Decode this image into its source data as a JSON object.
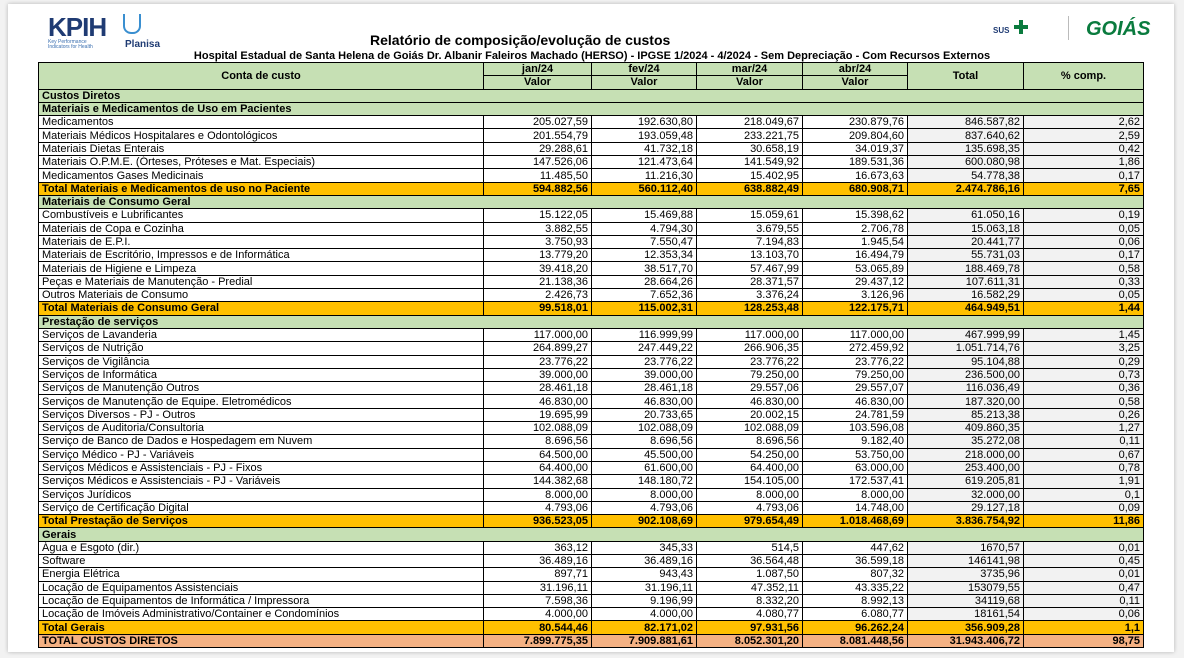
{
  "header": {
    "logo": "KPIH",
    "logo_tagline": "Key Performance Indicators for Health",
    "brand": "Planisa",
    "sus": "SUS",
    "state": "GOIÁS",
    "title": "Relatório de composição/evolução de custos",
    "subtitle": "Hospital Estadual de Santa Helena de Goiás Dr. Albanir Faleiros Machado (HERSO) - IPGSE 1/2024 - 4/2024 - Sem Depreciação - Com Recursos Externos"
  },
  "table": {
    "columns": [
      "Conta de custo",
      "jan/24",
      "fev/24",
      "mar/24",
      "abr/24",
      "Total",
      "% comp."
    ],
    "subheader": [
      "Valor",
      "Valor",
      "Valor",
      "Valor"
    ],
    "rows": [
      {
        "style": "group",
        "cells": [
          "Custos Diretos"
        ]
      },
      {
        "style": "group",
        "cells": [
          "Materiais e Medicamentos de Uso em Pacientes"
        ]
      },
      {
        "style": "item",
        "cells": [
          "Medicamentos",
          "205.027,59",
          "192.630,80",
          "218.049,67",
          "230.879,76",
          "846.587,82",
          "2,62"
        ]
      },
      {
        "style": "item",
        "cells": [
          "Materiais Médicos Hospitalares e Odontológicos",
          "201.554,79",
          "193.059,48",
          "233.221,75",
          "209.804,60",
          "837.640,62",
          "2,59"
        ]
      },
      {
        "style": "item",
        "cells": [
          "Materiais Dietas Enterais",
          "29.288,61",
          "41.732,18",
          "30.658,19",
          "34.019,37",
          "135.698,35",
          "0,42"
        ]
      },
      {
        "style": "item",
        "cells": [
          "Materiais O.P.M.E. (Órteses, Próteses e Mat. Especiais)",
          "147.526,06",
          "121.473,64",
          "141.549,92",
          "189.531,36",
          "600.080,98",
          "1,86"
        ]
      },
      {
        "style": "item",
        "cells": [
          "Medicamentos Gases Medicinais",
          "11.485,50",
          "11.216,30",
          "15.402,95",
          "16.673,63",
          "54.778,38",
          "0,17"
        ]
      },
      {
        "style": "total",
        "cells": [
          "Total Materiais e Medicamentos de uso no Paciente",
          "594.882,56",
          "560.112,40",
          "638.882,49",
          "680.908,71",
          "2.474.786,16",
          "7,65"
        ]
      },
      {
        "style": "group",
        "cells": [
          "Materiais de Consumo Geral"
        ]
      },
      {
        "style": "item",
        "cells": [
          "Combustíveis e Lubrificantes",
          "15.122,05",
          "15.469,88",
          "15.059,61",
          "15.398,62",
          "61.050,16",
          "0,19"
        ]
      },
      {
        "style": "item",
        "cells": [
          "Materiais de Copa e Cozinha",
          "3.882,55",
          "4.794,30",
          "3.679,55",
          "2.706,78",
          "15.063,18",
          "0,05"
        ]
      },
      {
        "style": "item",
        "cells": [
          "Materiais de E.P.I.",
          "3.750,93",
          "7.550,47",
          "7.194,83",
          "1.945,54",
          "20.441,77",
          "0,06"
        ]
      },
      {
        "style": "item",
        "cells": [
          "Materiais de Escritório, Impressos e de Informática",
          "13.779,20",
          "12.353,34",
          "13.103,70",
          "16.494,79",
          "55.731,03",
          "0,17"
        ]
      },
      {
        "style": "item",
        "cells": [
          "Materiais de Higiene e Limpeza",
          "39.418,20",
          "38.517,70",
          "57.467,99",
          "53.065,89",
          "188.469,78",
          "0,58"
        ]
      },
      {
        "style": "item",
        "cells": [
          "Peças e Materiais de Manutenção - Predial",
          "21.138,36",
          "28.664,26",
          "28.371,57",
          "29.437,12",
          "107.611,31",
          "0,33"
        ]
      },
      {
        "style": "item",
        "cells": [
          "Outros Materiais de Consumo",
          "2.426,73",
          "7.652,36",
          "3.376,24",
          "3.126,96",
          "16.582,29",
          "0,05"
        ]
      },
      {
        "style": "total",
        "cells": [
          "Total Materiais de Consumo Geral",
          "99.518,01",
          "115.002,31",
          "128.253,48",
          "122.175,71",
          "464.949,51",
          "1,44"
        ]
      },
      {
        "style": "group",
        "cells": [
          "Prestação de serviços"
        ]
      },
      {
        "style": "item",
        "cells": [
          "Serviços de Lavanderia",
          "117.000,00",
          "116.999,99",
          "117.000,00",
          "117.000,00",
          "467.999,99",
          "1,45"
        ]
      },
      {
        "style": "item",
        "cells": [
          "Serviços de Nutrição",
          "264.899,27",
          "247.449,22",
          "266.906,35",
          "272.459,92",
          "1.051.714,76",
          "3,25"
        ]
      },
      {
        "style": "item",
        "cells": [
          "Serviços de Vigilância",
          "23.776,22",
          "23.776,22",
          "23.776,22",
          "23.776,22",
          "95.104,88",
          "0,29"
        ]
      },
      {
        "style": "item",
        "cells": [
          "Serviços de Informática",
          "39.000,00",
          "39.000,00",
          "79.250,00",
          "79.250,00",
          "236.500,00",
          "0,73"
        ]
      },
      {
        "style": "item",
        "cells": [
          "Serviços de Manutenção Outros",
          "28.461,18",
          "28.461,18",
          "29.557,06",
          "29.557,07",
          "116.036,49",
          "0,36"
        ]
      },
      {
        "style": "item",
        "cells": [
          "Serviços de Manutenção de Equipe. Eletromédicos",
          "46.830,00",
          "46.830,00",
          "46.830,00",
          "46.830,00",
          "187.320,00",
          "0,58"
        ]
      },
      {
        "style": "item",
        "cells": [
          "Serviços Diversos - PJ - Outros",
          "19.695,99",
          "20.733,65",
          "20.002,15",
          "24.781,59",
          "85.213,38",
          "0,26"
        ]
      },
      {
        "style": "item",
        "cells": [
          "Serviços de Auditoria/Consultoria",
          "102.088,09",
          "102.088,09",
          "102.088,09",
          "103.596,08",
          "409.860,35",
          "1,27"
        ]
      },
      {
        "style": "item",
        "cells": [
          "Serviço de Banco de Dados e Hospedagem em Nuvem",
          "8.696,56",
          "8.696,56",
          "8.696,56",
          "9.182,40",
          "35.272,08",
          "0,11"
        ]
      },
      {
        "style": "item",
        "cells": [
          "Serviço Médico - PJ - Variáveis",
          "64.500,00",
          "45.500,00",
          "54.250,00",
          "53.750,00",
          "218.000,00",
          "0,67"
        ]
      },
      {
        "style": "item",
        "cells": [
          "Serviços Médicos e Assistenciais - PJ - Fixos",
          "64.400,00",
          "61.600,00",
          "64.400,00",
          "63.000,00",
          "253.400,00",
          "0,78"
        ]
      },
      {
        "style": "item",
        "cells": [
          "Serviços Médicos e Assistenciais - PJ - Variáveis",
          "144.382,68",
          "148.180,72",
          "154.105,00",
          "172.537,41",
          "619.205,81",
          "1,91"
        ]
      },
      {
        "style": "item",
        "cells": [
          "Serviços Jurídicos",
          "8.000,00",
          "8.000,00",
          "8.000,00",
          "8.000,00",
          "32.000,00",
          "0,1"
        ]
      },
      {
        "style": "item",
        "cells": [
          "Serviço de Certificação Digital",
          "4.793,06",
          "4.793,06",
          "4.793,06",
          "14.748,00",
          "29.127,18",
          "0,09"
        ]
      },
      {
        "style": "total",
        "cells": [
          "Total Prestação de Serviços",
          "936.523,05",
          "902.108,69",
          "979.654,49",
          "1.018.468,69",
          "3.836.754,92",
          "11,86"
        ]
      },
      {
        "style": "group",
        "cells": [
          "Gerais"
        ]
      },
      {
        "style": "item",
        "cells": [
          "Água e Esgoto (dir.)",
          "363,12",
          "345,33",
          "514,5",
          "447,62",
          "1670,57",
          "0,01"
        ]
      },
      {
        "style": "item",
        "cells": [
          "Software",
          "36.489,16",
          "36.489,16",
          "36.564,48",
          "36.599,18",
          "146141,98",
          "0,45"
        ]
      },
      {
        "style": "item",
        "cells": [
          "Energia Elétrica",
          "897,71",
          "943,43",
          "1.087,50",
          "807,32",
          "3735,96",
          "0,01"
        ]
      },
      {
        "style": "item",
        "cells": [
          "Locação de Equipamentos Assistenciais",
          "31.196,11",
          "31.196,11",
          "47.352,11",
          "43.335,22",
          "153079,55",
          "0,47"
        ]
      },
      {
        "style": "item",
        "cells": [
          "Locação de Equipamentos de Informática / Impressora",
          "7.598,36",
          "9.196,99",
          "8.332,20",
          "8.992,13",
          "34119,68",
          "0,11"
        ]
      },
      {
        "style": "item",
        "cells": [
          "Locação de Imóveis Administrativo/Container e Condomínios",
          "4.000,00",
          "4.000,00",
          "4.080,77",
          "6.080,77",
          "18161,54",
          "0,06"
        ]
      },
      {
        "style": "total",
        "cells": [
          "Total Gerais",
          "80.544,46",
          "82.171,02",
          "97.931,56",
          "96.262,24",
          "356.909,28",
          "1,1"
        ]
      },
      {
        "style": "grand",
        "cells": [
          "TOTAL CUSTOS DIRETOS",
          "7.899.775,35",
          "7.909.881,61",
          "8.052.301,20",
          "8.081.448,56",
          "31.943.406,72",
          "98,75"
        ]
      }
    ]
  }
}
